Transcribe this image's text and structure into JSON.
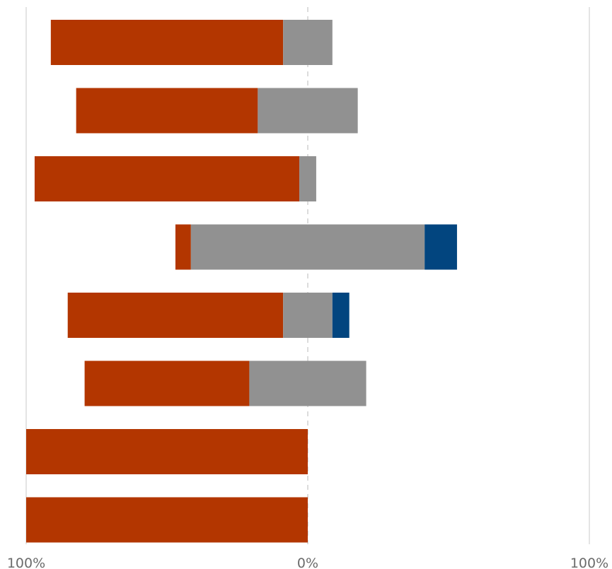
{
  "chart_data": {
    "type": "bar",
    "orientation": "horizontal",
    "stacked": "diverging",
    "xlim": [
      -100,
      100
    ],
    "x_ticks": [
      {
        "value": -100,
        "label": "100%"
      },
      {
        "value": 0,
        "label": "0%"
      },
      {
        "value": 100,
        "label": "100%"
      }
    ],
    "grid": true,
    "legend": "none",
    "series_colors": {
      "negative": "#b33600",
      "neutral": "#919191",
      "positive": "#02457f"
    },
    "rows": [
      {
        "negative": 82.5,
        "neutral": 17.5,
        "positive": 0
      },
      {
        "negative": 64.5,
        "neutral": 35.5,
        "positive": 0
      },
      {
        "negative": 94.0,
        "neutral": 6.0,
        "positive": 0
      },
      {
        "negative": 5.5,
        "neutral": 83.0,
        "positive": 11.5
      },
      {
        "negative": 76.5,
        "neutral": 17.5,
        "positive": 6.0
      },
      {
        "negative": 58.5,
        "neutral": 41.5,
        "positive": 0
      },
      {
        "negative": 100,
        "neutral": 0,
        "positive": 0
      },
      {
        "negative": 100,
        "neutral": 0,
        "positive": 0
      }
    ]
  }
}
